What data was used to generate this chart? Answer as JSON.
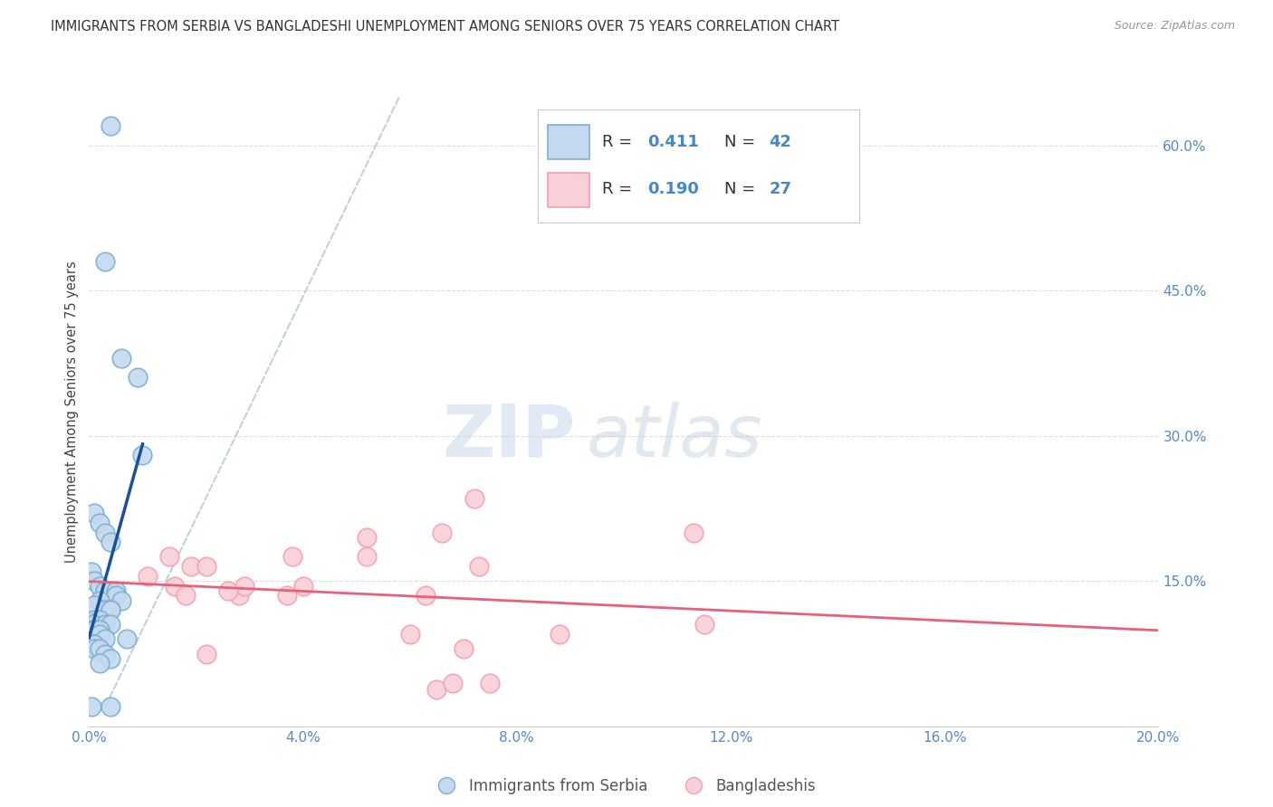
{
  "title": "IMMIGRANTS FROM SERBIA VS BANGLADESHI UNEMPLOYMENT AMONG SENIORS OVER 75 YEARS CORRELATION CHART",
  "source": "Source: ZipAtlas.com",
  "ylabel": "Unemployment Among Seniors over 75 years",
  "xlim": [
    0.0,
    0.2
  ],
  "ylim": [
    0.0,
    0.65
  ],
  "xticks": [
    0.0,
    0.04,
    0.08,
    0.12,
    0.16,
    0.2
  ],
  "yticks_right": [
    0.15,
    0.3,
    0.45,
    0.6
  ],
  "serbia_R": 0.411,
  "serbia_N": 42,
  "bangla_R": 0.19,
  "bangla_N": 27,
  "serbia_color": "#7BAFD4",
  "serbia_face": "#C5D9EE",
  "bangla_color": "#F4A0B0",
  "bangla_face": "#FAD0D8",
  "serbia_trend_color": "#1A4F9C",
  "bangla_trend_color": "#E8607A",
  "diag_color": "#BBCCDD",
  "serbia_points_x": [
    0.004,
    0.003,
    0.006,
    0.009,
    0.01,
    0.001,
    0.002,
    0.003,
    0.004,
    0.0005,
    0.001,
    0.002,
    0.003,
    0.004,
    0.005,
    0.005,
    0.006,
    0.002,
    0.001,
    0.003,
    0.004,
    0.004,
    0.001,
    0.002,
    0.0008,
    0.003,
    0.004,
    0.0006,
    0.001,
    0.002,
    0.002,
    0.003,
    0.007,
    0.0007,
    0.001,
    0.001,
    0.002,
    0.003,
    0.004,
    0.002,
    0.0005,
    0.004
  ],
  "serbia_points_y": [
    0.62,
    0.48,
    0.38,
    0.36,
    0.28,
    0.22,
    0.21,
    0.2,
    0.19,
    0.16,
    0.15,
    0.145,
    0.14,
    0.14,
    0.14,
    0.135,
    0.13,
    0.13,
    0.125,
    0.12,
    0.12,
    0.12,
    0.11,
    0.11,
    0.105,
    0.105,
    0.105,
    0.1,
    0.1,
    0.1,
    0.095,
    0.09,
    0.09,
    0.085,
    0.085,
    0.08,
    0.08,
    0.075,
    0.07,
    0.065,
    0.02,
    0.02
  ],
  "bangla_points_x": [
    0.015,
    0.019,
    0.028,
    0.016,
    0.038,
    0.063,
    0.066,
    0.072,
    0.018,
    0.029,
    0.04,
    0.052,
    0.026,
    0.022,
    0.011,
    0.022,
    0.037,
    0.052,
    0.073,
    0.088,
    0.113,
    0.06,
    0.065,
    0.068,
    0.07,
    0.075,
    0.115
  ],
  "bangla_points_y": [
    0.175,
    0.165,
    0.135,
    0.145,
    0.175,
    0.135,
    0.2,
    0.235,
    0.135,
    0.145,
    0.145,
    0.195,
    0.14,
    0.075,
    0.155,
    0.165,
    0.135,
    0.175,
    0.165,
    0.095,
    0.2,
    0.095,
    0.038,
    0.045,
    0.08,
    0.045,
    0.105
  ],
  "watermark_zip": "ZIP",
  "watermark_atlas": "atlas",
  "background_color": "#FFFFFF",
  "grid_color": "#DDDDDD"
}
